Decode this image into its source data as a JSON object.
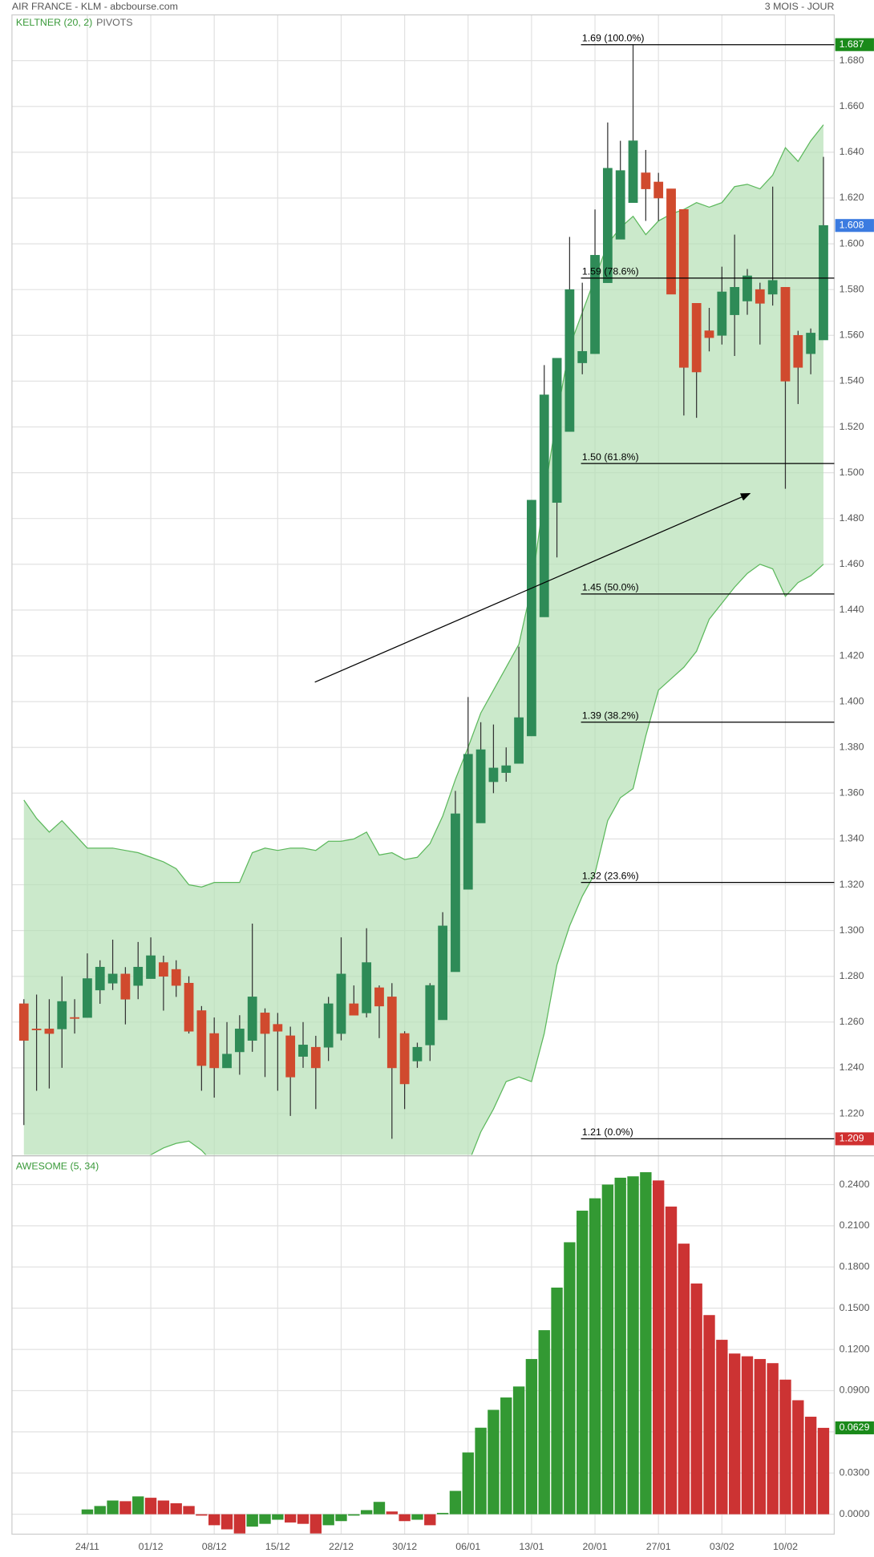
{
  "header": {
    "title": "AIR FRANCE - KLM - abcbourse.com",
    "period": "3 MOIS - JOUR"
  },
  "chart_data": [
    {
      "type": "candlestick",
      "categories": [
        null,
        null,
        null,
        null,
        null,
        "24/11",
        null,
        null,
        null,
        null,
        "01/12",
        null,
        null,
        null,
        null,
        "08/12",
        null,
        null,
        null,
        null,
        "15/12",
        null,
        null,
        null,
        null,
        "22/12",
        null,
        null,
        null,
        null,
        "30/12",
        null,
        null,
        null,
        null,
        "06/01",
        null,
        null,
        null,
        null,
        "13/01",
        null,
        null,
        null,
        null,
        "20/01",
        null,
        null,
        null,
        null,
        "27/01",
        null,
        null,
        null,
        null,
        "03/02",
        null,
        null,
        null,
        null,
        "10/02",
        null,
        null,
        null
      ],
      "open": [
        1.268,
        1.257,
        1.257,
        1.257,
        1.262,
        1.262,
        1.274,
        1.277,
        1.281,
        1.276,
        1.279,
        1.286,
        1.283,
        1.277,
        1.265,
        1.255,
        1.24,
        1.247,
        1.252,
        1.264,
        1.259,
        1.254,
        1.245,
        1.249,
        1.249,
        1.255,
        1.268,
        1.264,
        1.275,
        1.271,
        1.255,
        1.243,
        1.25,
        1.261,
        1.282,
        1.318,
        1.347,
        1.365,
        1.369,
        1.373,
        1.385,
        1.437,
        1.487,
        1.518,
        1.548,
        1.552,
        1.583,
        1.602,
        1.618,
        1.631,
        1.627,
        1.624,
        1.615,
        1.574,
        1.562,
        1.56,
        1.569,
        1.575,
        1.58,
        1.578,
        1.581,
        1.56,
        1.552,
        1.558
      ],
      "high": [
        1.27,
        1.272,
        1.27,
        1.28,
        1.27,
        1.29,
        1.287,
        1.296,
        1.284,
        1.295,
        1.297,
        1.289,
        1.287,
        1.28,
        1.267,
        1.262,
        1.26,
        1.263,
        1.303,
        1.266,
        1.264,
        1.258,
        1.26,
        1.254,
        1.271,
        1.297,
        1.276,
        1.301,
        1.276,
        1.277,
        1.256,
        1.251,
        1.277,
        1.308,
        1.361,
        1.402,
        1.391,
        1.39,
        1.38,
        1.424,
        1.488,
        1.547,
        1.55,
        1.603,
        1.583,
        1.615,
        1.653,
        1.645,
        1.687,
        1.641,
        1.631,
        1.624,
        1.615,
        1.574,
        1.572,
        1.59,
        1.604,
        1.589,
        1.583,
        1.625,
        1.581,
        1.562,
        1.563,
        1.638
      ],
      "low": [
        1.215,
        1.23,
        1.231,
        1.24,
        1.255,
        1.262,
        1.268,
        1.274,
        1.259,
        1.27,
        1.279,
        1.265,
        1.271,
        1.255,
        1.23,
        1.227,
        1.24,
        1.237,
        1.247,
        1.236,
        1.23,
        1.219,
        1.24,
        1.222,
        1.243,
        1.252,
        1.263,
        1.262,
        1.253,
        1.209,
        1.222,
        1.24,
        1.243,
        1.261,
        1.282,
        1.318,
        1.347,
        1.36,
        1.365,
        1.373,
        1.385,
        1.437,
        1.463,
        1.518,
        1.543,
        1.552,
        1.583,
        1.602,
        1.618,
        1.61,
        1.61,
        1.578,
        1.525,
        1.524,
        1.553,
        1.556,
        1.551,
        1.569,
        1.556,
        1.573,
        1.493,
        1.53,
        1.543,
        1.558
      ],
      "close": [
        1.252,
        1.257,
        1.255,
        1.269,
        1.262,
        1.279,
        1.284,
        1.281,
        1.27,
        1.284,
        1.289,
        1.28,
        1.276,
        1.256,
        1.241,
        1.24,
        1.246,
        1.257,
        1.271,
        1.255,
        1.256,
        1.236,
        1.25,
        1.24,
        1.268,
        1.281,
        1.263,
        1.286,
        1.267,
        1.24,
        1.233,
        1.249,
        1.276,
        1.302,
        1.351,
        1.377,
        1.379,
        1.371,
        1.372,
        1.393,
        1.488,
        1.534,
        1.55,
        1.58,
        1.553,
        1.595,
        1.633,
        1.632,
        1.645,
        1.624,
        1.62,
        1.578,
        1.546,
        1.544,
        1.559,
        1.579,
        1.581,
        1.586,
        1.574,
        1.584,
        1.54,
        1.546,
        1.561,
        1.608
      ],
      "up_color": "#2e8b57",
      "down_color": "#d04a2e",
      "indicators": [
        {
          "name": "KELTNER (20, 2)",
          "color": "#5cb85c",
          "fill": "#b5dfb5",
          "upper": [
            1.357,
            1.349,
            1.343,
            1.348,
            1.342,
            1.336,
            1.336,
            1.336,
            1.335,
            1.334,
            1.332,
            1.33,
            1.327,
            1.32,
            1.319,
            1.321,
            1.321,
            1.321,
            1.334,
            1.336,
            1.335,
            1.336,
            1.336,
            1.335,
            1.339,
            1.339,
            1.34,
            1.343,
            1.333,
            1.334,
            1.331,
            1.332,
            1.338,
            1.35,
            1.366,
            1.38,
            1.395,
            1.405,
            1.415,
            1.425,
            1.45,
            1.49,
            1.525,
            1.555,
            1.57,
            1.585,
            1.6,
            1.607,
            1.612,
            1.604,
            1.61,
            1.613,
            1.615,
            1.618,
            1.616,
            1.618,
            1.625,
            1.626,
            1.624,
            1.63,
            1.642,
            1.636,
            1.645,
            1.652
          ],
          "lower": [
            1.185,
            1.186,
            1.188,
            1.19,
            1.192,
            1.194,
            1.196,
            1.198,
            1.199,
            1.2,
            1.202,
            1.205,
            1.207,
            1.208,
            1.204,
            1.198,
            1.196,
            1.194,
            1.192,
            1.19,
            1.188,
            1.187,
            1.186,
            1.186,
            1.187,
            1.188,
            1.189,
            1.19,
            1.191,
            1.19,
            1.189,
            1.19,
            1.192,
            1.194,
            1.196,
            1.198,
            1.212,
            1.222,
            1.234,
            1.236,
            1.234,
            1.255,
            1.285,
            1.302,
            1.315,
            1.325,
            1.348,
            1.358,
            1.362,
            1.385,
            1.405,
            1.41,
            1.415,
            1.422,
            1.436,
            1.443,
            1.45,
            1.456,
            1.46,
            1.458,
            1.446,
            1.452,
            1.455,
            1.46
          ]
        },
        {
          "name": "PIVOTS"
        }
      ],
      "fib_levels": [
        {
          "value": 1.687,
          "label": "1.69 (100.0%)"
        },
        {
          "value": 1.585,
          "label": "1.59 (78.6%)"
        },
        {
          "value": 1.504,
          "label": "1.50 (61.8%)"
        },
        {
          "value": 1.447,
          "label": "1.45 (50.0%)"
        },
        {
          "value": 1.391,
          "label": "1.39 (38.2%)"
        },
        {
          "value": 1.321,
          "label": "1.32 (23.6%)"
        },
        {
          "value": 1.209,
          "label": "1.21 (0.0%)"
        }
      ],
      "markers": [
        {
          "value": 1.687,
          "color": "#1a8a1a"
        },
        {
          "value": 1.608,
          "color": "#3b7be0"
        },
        {
          "value": 1.209,
          "color": "#d03030"
        }
      ],
      "ylim": [
        1.202,
        1.7
      ],
      "yticks": [
        {
          "value": 1.22,
          "label": "1.220"
        },
        {
          "value": 1.24,
          "label": "1.240"
        },
        {
          "value": 1.26,
          "label": "1.260"
        },
        {
          "value": 1.28,
          "label": "1.280"
        },
        {
          "value": 1.3,
          "label": "1.300"
        },
        {
          "value": 1.32,
          "label": "1.320"
        },
        {
          "value": 1.34,
          "label": "1.340"
        },
        {
          "value": 1.36,
          "label": "1.360"
        },
        {
          "value": 1.38,
          "label": "1.380"
        },
        {
          "value": 1.4,
          "label": "1.400"
        },
        {
          "value": 1.42,
          "label": "1.420"
        },
        {
          "value": 1.44,
          "label": "1.440"
        },
        {
          "value": 1.46,
          "label": "1.460"
        },
        {
          "value": 1.48,
          "label": "1.480"
        },
        {
          "value": 1.5,
          "label": "1.500"
        },
        {
          "value": 1.52,
          "label": "1.520"
        },
        {
          "value": 1.54,
          "label": "1.540"
        },
        {
          "value": 1.56,
          "label": "1.560"
        },
        {
          "value": 1.58,
          "label": "1.580"
        },
        {
          "value": 1.6,
          "label": "1.600"
        },
        {
          "value": 1.62,
          "label": "1.620"
        },
        {
          "value": 1.64,
          "label": "1.640"
        },
        {
          "value": 1.66,
          "label": "1.660"
        },
        {
          "value": 1.68,
          "label": "1.680"
        }
      ],
      "grid": true
    },
    {
      "type": "bar",
      "title": "AWESOME (5, 34)",
      "values": [
        null,
        null,
        null,
        null,
        null,
        0.0035,
        0.006,
        0.01,
        0.0095,
        0.013,
        0.012,
        0.01,
        0.008,
        0.006,
        -0.001,
        -0.008,
        -0.011,
        -0.014,
        -0.009,
        -0.007,
        -0.004,
        -0.006,
        -0.007,
        -0.014,
        -0.008,
        -0.005,
        -0.001,
        0.003,
        0.009,
        0.002,
        -0.005,
        -0.004,
        -0.008,
        0.001,
        0.017,
        0.045,
        0.063,
        0.076,
        0.085,
        0.093,
        0.113,
        0.134,
        0.165,
        0.198,
        0.221,
        0.23,
        0.24,
        0.245,
        0.246,
        0.249,
        0.243,
        0.224,
        0.197,
        0.168,
        0.145,
        0.127,
        0.117,
        0.115,
        0.113,
        0.11,
        0.098,
        0.083,
        0.071,
        0.0629
      ],
      "up_color": "#339933",
      "down_color": "#cc3333",
      "markers": [
        {
          "value": 0.0629,
          "color": "#1a8a1a"
        }
      ],
      "ylim": [
        -0.0145,
        0.2602
      ],
      "yticks": [
        {
          "value": 0,
          "label": "0.0000"
        },
        {
          "value": 0.03,
          "label": "0.0300"
        },
        {
          "value": 0.06,
          "label": "0.0600"
        },
        {
          "value": 0.09,
          "label": "0.0900"
        },
        {
          "value": 0.12,
          "label": "0.1200"
        },
        {
          "value": 0.15,
          "label": "0.1500"
        },
        {
          "value": 0.18,
          "label": "0.1800"
        },
        {
          "value": 0.21,
          "label": "0.2100"
        },
        {
          "value": 0.24,
          "label": "0.2400"
        }
      ],
      "grid": true
    }
  ]
}
